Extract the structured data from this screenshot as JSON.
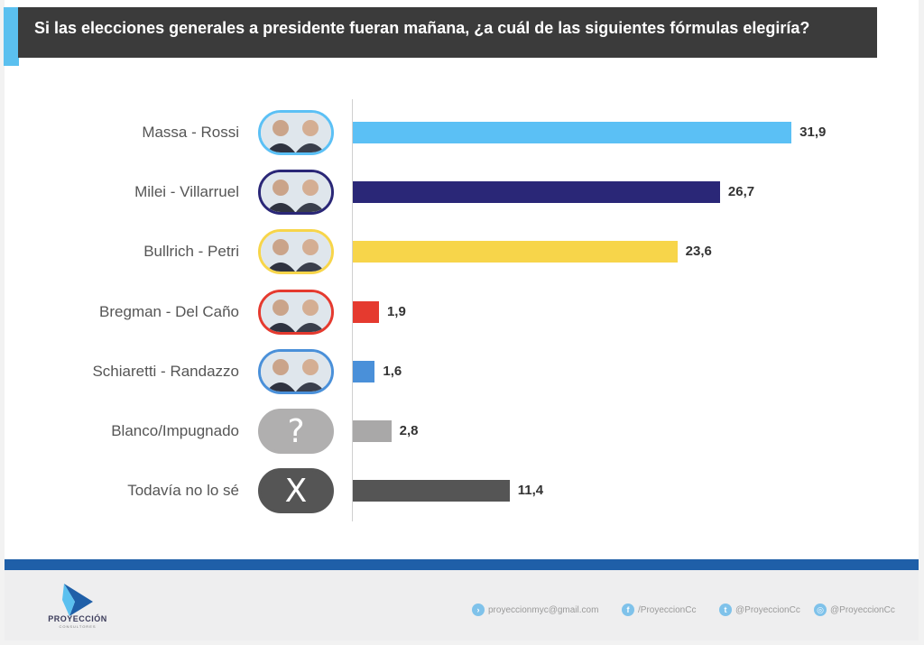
{
  "title": "Si las elecciones generales a presidente fueran mañana, ¿a cuál de las siguientes fórmulas elegiría?",
  "chart_data": {
    "type": "bar",
    "orientation": "horizontal",
    "categories": [
      "Massa - Rossi",
      "Milei - Villarruel",
      "Bullrich - Petri",
      "Bregman - Del Caño",
      "Schiaretti - Randazzo",
      "Blanco/Impugnado",
      "Todavía no lo sé"
    ],
    "values": [
      31.9,
      26.7,
      23.6,
      1.9,
      1.6,
      2.8,
      11.4
    ],
    "value_labels": [
      "31,9",
      "26,7",
      "23,6",
      "1,9",
      "1,6",
      "2,8",
      "11,4"
    ],
    "colors": [
      "#5bc0f5",
      "#2a2777",
      "#f7d54a",
      "#e53a2f",
      "#4a90d9",
      "#a9a8a8",
      "#555555"
    ],
    "title": "Si las elecciones generales a presidente fueran mañana, ¿a cuál de las siguientes fórmulas elegiría?",
    "xlabel": "",
    "ylabel": "",
    "xlim": [
      0,
      32
    ],
    "grid": false,
    "legend": "none"
  },
  "pills": [
    {
      "kind": "photos",
      "border": "#5bc0f5",
      "icon": "candidate-photos-icon"
    },
    {
      "kind": "photos",
      "border": "#2a2777",
      "icon": "candidate-photos-icon"
    },
    {
      "kind": "photos",
      "border": "#f7d54a",
      "icon": "candidate-photos-icon"
    },
    {
      "kind": "photos",
      "border": "#e53a2f",
      "icon": "candidate-photos-icon"
    },
    {
      "kind": "photos",
      "border": "#4a90d9",
      "icon": "candidate-photos-icon"
    },
    {
      "kind": "glyph",
      "border": "#b0afaf",
      "fill": "#b0afaf",
      "glyph": "?",
      "icon": "question-mark-icon"
    },
    {
      "kind": "glyph",
      "border": "#555555",
      "fill": "#555555",
      "glyph": "X",
      "icon": "x-mark-icon"
    }
  ],
  "footer": {
    "brand": "PROYECCIÓN",
    "brand_sub": "CONSULTORES",
    "email": "proyeccionmyc@gmail.com",
    "facebook": "/ProyeccionCc",
    "twitter": "@ProyeccionCc",
    "instagram": "@ProyeccionCc"
  }
}
